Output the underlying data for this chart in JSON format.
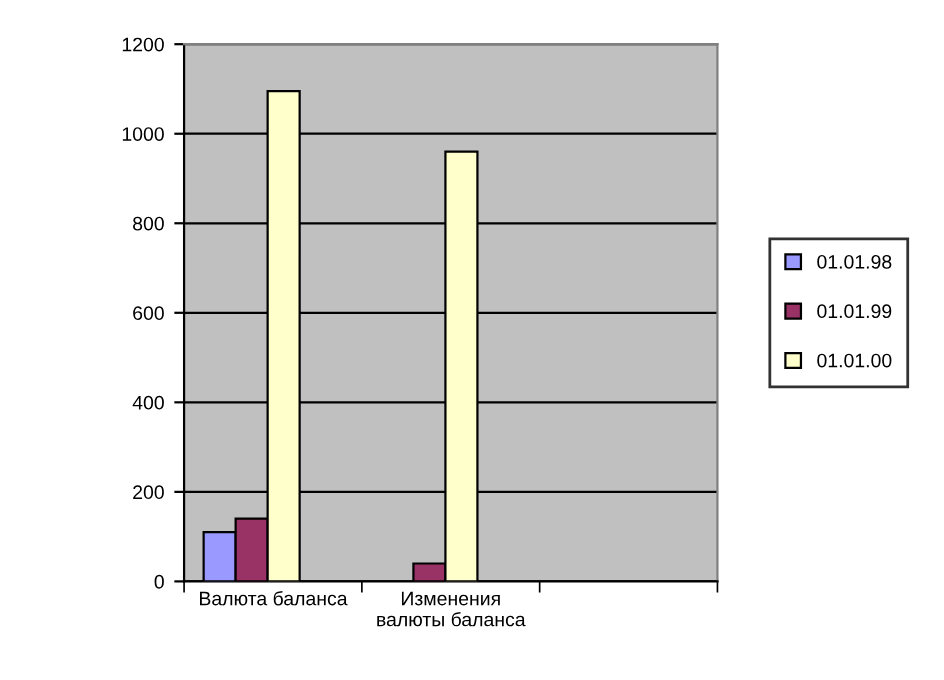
{
  "chart_data": {
    "type": "bar",
    "categories": [
      "Валюта баланса",
      "Изменения валюты баланса",
      null
    ],
    "series": [
      {
        "name": "01.01.98",
        "color": "#9999ff",
        "values": [
          110,
          null,
          null
        ]
      },
      {
        "name": "01.01.99",
        "color": "#993366",
        "values": [
          140,
          40,
          null
        ]
      },
      {
        "name": "01.01.00",
        "color": "#ffffcc",
        "values": [
          1095,
          960,
          null
        ]
      }
    ],
    "ylim": [
      0,
      1200
    ],
    "yticks": [
      0,
      200,
      400,
      600,
      800,
      1000,
      1200
    ],
    "grid": "y",
    "legend": "right"
  }
}
